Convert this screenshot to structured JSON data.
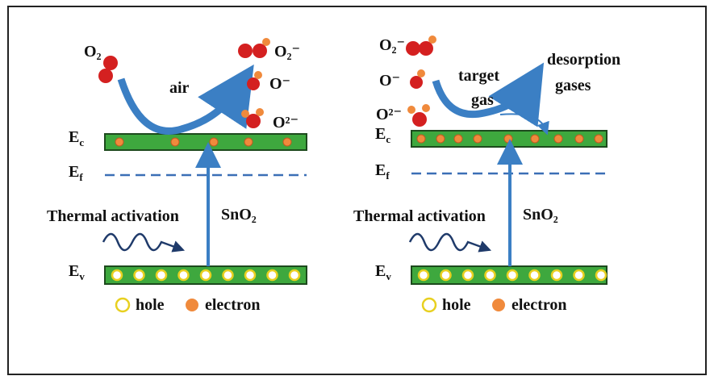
{
  "left_panel": {
    "species": {
      "o2": "O₂",
      "air": "air",
      "o2_minus": "O₂⁻",
      "o_minus": "O⁻",
      "o_2minus": "O²⁻"
    },
    "bands": {
      "ec": {
        "symbol": "E",
        "subscript": "c"
      },
      "ef": {
        "symbol": "E",
        "subscript": "f"
      },
      "ev": {
        "symbol": "E",
        "subscript": "v"
      }
    },
    "thermal": "Thermal activation",
    "material": "SnO₂",
    "legend": {
      "hole": "hole",
      "electron": "electron"
    }
  },
  "right_panel": {
    "species": {
      "o2_minus": "O₂⁻",
      "o_minus": "O⁻",
      "o_2minus": "O²⁻"
    },
    "target_gas": [
      "target",
      "gas"
    ],
    "desorption": [
      "desorption",
      "gases"
    ],
    "bands": {
      "ec": {
        "symbol": "E",
        "subscript": "c"
      },
      "ef": {
        "symbol": "E",
        "subscript": "f"
      },
      "ev": {
        "symbol": "E",
        "subscript": "v"
      }
    },
    "thermal": "Thermal activation",
    "material": "SnO₂",
    "legend": {
      "hole": "hole",
      "electron": "electron"
    }
  }
}
